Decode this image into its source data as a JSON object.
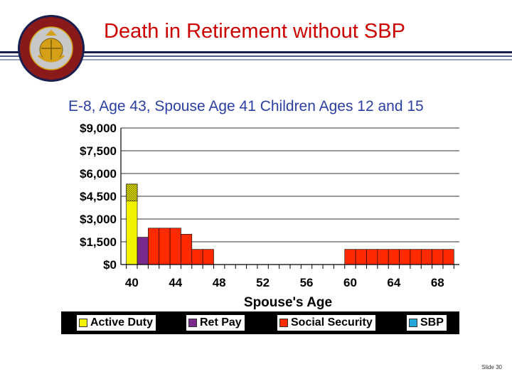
{
  "slide": {
    "title": "Death in Retirement without SBP",
    "subtitle": "E-8, Age 43, Spouse Age 41 Children Ages 12 and 15",
    "slide_number": "Slide 30"
  },
  "colors": {
    "active_duty": "#f2f200",
    "ret_pay": "#7a2a8c",
    "social_security": "#ff2a00",
    "sbp": "#22a6d8",
    "title": "#cc0000",
    "subtitle": "#2b3ea3"
  },
  "chart_data": {
    "type": "bar",
    "stacked": true,
    "title": "",
    "subtitle": "E-8, Age 43, Spouse Age 41 Children Ages 12 and 15",
    "xlabel": "Spouse's Age",
    "ylabel": "",
    "x": [
      40,
      41,
      42,
      43,
      44,
      45,
      46,
      47,
      48,
      49,
      50,
      51,
      52,
      53,
      54,
      55,
      56,
      57,
      58,
      59,
      60,
      61,
      62,
      63,
      64,
      65,
      66,
      67,
      68,
      69
    ],
    "x_ticks": [
      40,
      44,
      48,
      52,
      56,
      60,
      64,
      68
    ],
    "y_ticks": [
      "$0",
      "$1,500",
      "$3,000",
      "$4,500",
      "$6,000",
      "$7,500",
      "$9,000"
    ],
    "ylim": [
      0,
      9000
    ],
    "grid": "horizontal",
    "legend_position": "bottom",
    "series": [
      {
        "name": "Active Duty",
        "values": [
          5300,
          0,
          0,
          0,
          0,
          0,
          0,
          0,
          0,
          0,
          0,
          0,
          0,
          0,
          0,
          0,
          0,
          0,
          0,
          0,
          0,
          0,
          0,
          0,
          0,
          0,
          0,
          0,
          0,
          0
        ]
      },
      {
        "name": "Ret Pay",
        "values": [
          0,
          1800,
          0,
          0,
          0,
          0,
          0,
          0,
          0,
          0,
          0,
          0,
          0,
          0,
          0,
          0,
          0,
          0,
          0,
          0,
          0,
          0,
          0,
          0,
          0,
          0,
          0,
          0,
          0,
          0
        ]
      },
      {
        "name": "Social Security",
        "values": [
          0,
          0,
          2400,
          2400,
          2400,
          2000,
          1000,
          1000,
          0,
          0,
          0,
          0,
          0,
          0,
          0,
          0,
          0,
          0,
          0,
          0,
          1000,
          1000,
          1000,
          1000,
          1000,
          1000,
          1000,
          1000,
          1000,
          1000
        ]
      },
      {
        "name": "SBP",
        "values": [
          0,
          0,
          0,
          0,
          0,
          0,
          0,
          0,
          0,
          0,
          0,
          0,
          0,
          0,
          0,
          0,
          0,
          0,
          0,
          0,
          0,
          0,
          0,
          0,
          0,
          0,
          0,
          0,
          0,
          0
        ]
      }
    ],
    "annotations": [
      "Active Duty bar at age 40 has a hatched upper portion from about $4,200 to $5,300"
    ]
  }
}
